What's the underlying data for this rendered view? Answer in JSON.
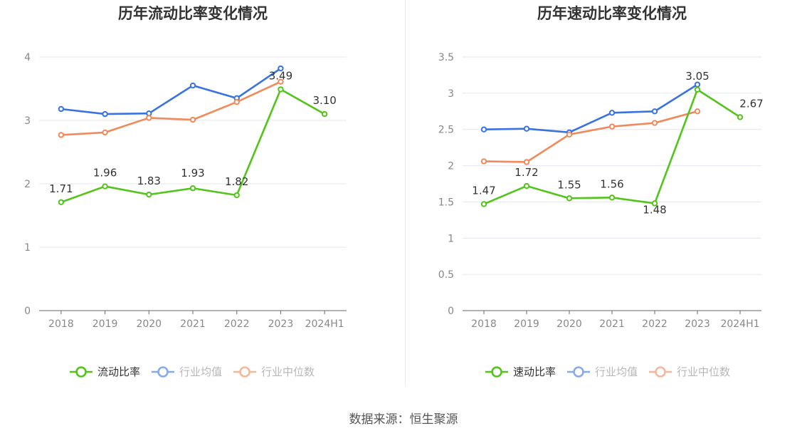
{
  "footer": {
    "source": "数据来源：恒生聚源"
  },
  "colors": {
    "green": "#52c41a",
    "blue": "#3a72e0",
    "orange": "#f08a5d",
    "axis": "#666666",
    "grid": "#e4e6ef"
  },
  "chart_data": [
    {
      "type": "line",
      "title": "历年流动比率变化情况",
      "categories": [
        "2018",
        "2019",
        "2020",
        "2021",
        "2022",
        "2023",
        "2024H1"
      ],
      "ylim": [
        0,
        4
      ],
      "yticks": [
        "0",
        "1",
        "2",
        "3",
        "4"
      ],
      "grid": true,
      "legend_position": "bottom",
      "series": [
        {
          "name": "流动比率",
          "color": "#52c41a",
          "values": [
            1.71,
            1.96,
            1.83,
            1.93,
            1.82,
            3.49,
            3.1
          ],
          "labels": [
            "1.71",
            "1.96",
            "1.83",
            "1.93",
            "1.82",
            "3.49",
            "3.10"
          ]
        },
        {
          "name": "行业均值",
          "color": "#3a72e0",
          "values": [
            3.18,
            3.1,
            3.11,
            3.55,
            3.35,
            3.82,
            null
          ]
        },
        {
          "name": "行业中位数",
          "color": "#f08a5d",
          "values": [
            2.77,
            2.81,
            3.04,
            3.01,
            3.29,
            3.61,
            null
          ]
        }
      ]
    },
    {
      "type": "line",
      "title": "历年速动比率变化情况",
      "categories": [
        "2018",
        "2019",
        "2020",
        "2021",
        "2022",
        "2023",
        "2024H1"
      ],
      "ylim": [
        0,
        3.5
      ],
      "yticks": [
        "0",
        "0.5",
        "1",
        "1.5",
        "2",
        "2.5",
        "3",
        "3.5"
      ],
      "grid": true,
      "legend_position": "bottom",
      "series": [
        {
          "name": "速动比率",
          "color": "#52c41a",
          "values": [
            1.47,
            1.72,
            1.55,
            1.56,
            1.48,
            3.05,
            2.67
          ],
          "labels": [
            "1.47",
            "1.72",
            "1.55",
            "1.56",
            "1.48",
            "3.05",
            "2.67"
          ]
        },
        {
          "name": "行业均值",
          "color": "#3a72e0",
          "values": [
            2.5,
            2.51,
            2.46,
            2.73,
            2.75,
            3.12,
            null
          ]
        },
        {
          "name": "行业中位数",
          "color": "#f08a5d",
          "values": [
            2.06,
            2.05,
            2.43,
            2.54,
            2.59,
            2.75,
            null
          ]
        }
      ]
    }
  ]
}
